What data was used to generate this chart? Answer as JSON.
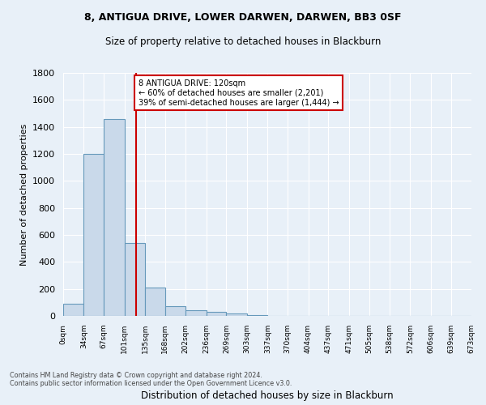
{
  "title1": "8, ANTIGUA DRIVE, LOWER DARWEN, DARWEN, BB3 0SF",
  "title2": "Size of property relative to detached houses in Blackburn",
  "xlabel": "Distribution of detached houses by size in Blackburn",
  "ylabel": "Number of detached properties",
  "bin_edges": [
    0,
    34,
    67,
    101,
    135,
    168,
    202,
    236,
    269,
    303,
    337,
    370,
    404,
    437,
    471,
    505,
    538,
    572,
    606,
    639,
    673
  ],
  "bar_heights": [
    90,
    1200,
    1460,
    540,
    210,
    70,
    45,
    30,
    20,
    5,
    2,
    1,
    0,
    0,
    0,
    0,
    0,
    0,
    0,
    0
  ],
  "bar_color": "#c9d9ea",
  "bar_edge_color": "#6699bb",
  "property_size": 120,
  "vline_color": "#cc0000",
  "annotation_text": "8 ANTIGUA DRIVE: 120sqm\n← 60% of detached houses are smaller (2,201)\n39% of semi-detached houses are larger (1,444) →",
  "annotation_box_color": "#ffffff",
  "annotation_box_edge": "#cc0000",
  "ylim": [
    0,
    1800
  ],
  "yticks": [
    0,
    200,
    400,
    600,
    800,
    1000,
    1200,
    1400,
    1600,
    1800
  ],
  "footer1": "Contains HM Land Registry data © Crown copyright and database right 2024.",
  "footer2": "Contains public sector information licensed under the Open Government Licence v3.0.",
  "bg_color": "#e8f0f8",
  "grid_color": "#ffffff"
}
